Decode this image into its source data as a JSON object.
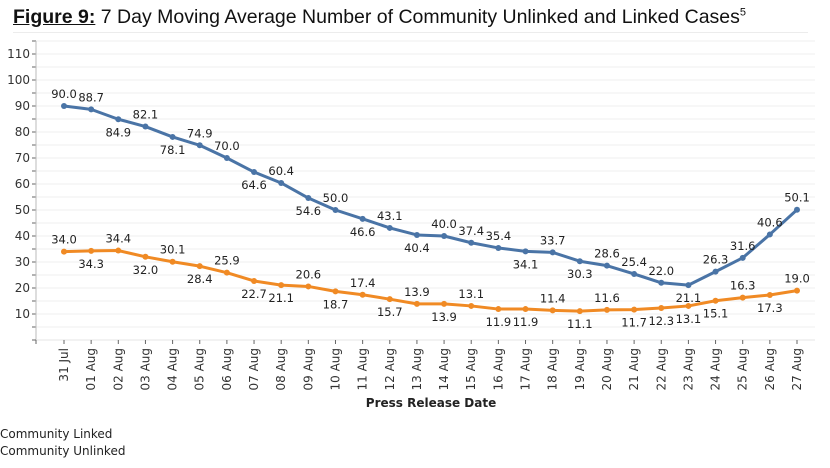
{
  "title": {
    "figure_label": "Figure 9:",
    "text": " 7 Day Moving Average Number of Community Unlinked and Linked Cases",
    "superscript": "5"
  },
  "chart_data": {
    "type": "line",
    "title": "Figure 9: 7 Day Moving Average Number of Community Unlinked and Linked Cases",
    "xlabel": "Press Release Date",
    "ylabel": "",
    "ylim": [
      0,
      115
    ],
    "yticks": [
      10,
      20,
      30,
      40,
      50,
      60,
      70,
      80,
      90,
      100,
      110
    ],
    "grid": true,
    "legend_position": "bottom-left",
    "categories": [
      "31 Jul",
      "01 Aug",
      "02 Aug",
      "03 Aug",
      "04 Aug",
      "05 Aug",
      "06 Aug",
      "07 Aug",
      "08 Aug",
      "09 Aug",
      "10 Aug",
      "11 Aug",
      "12 Aug",
      "13 Aug",
      "14 Aug",
      "15 Aug",
      "16 Aug",
      "17 Aug",
      "18 Aug",
      "19 Aug",
      "20 Aug",
      "21 Aug",
      "22 Aug",
      "23 Aug",
      "24 Aug",
      "25 Aug",
      "26 Aug",
      "27 Aug"
    ],
    "series": [
      {
        "name": "Community Unlinked",
        "color": "#4a74a6",
        "values": [
          90.0,
          88.7,
          84.9,
          82.1,
          78.1,
          74.9,
          70.0,
          64.6,
          60.4,
          54.6,
          50.0,
          46.6,
          43.1,
          40.4,
          40.0,
          37.4,
          35.4,
          34.1,
          33.7,
          30.3,
          28.6,
          25.4,
          22.0,
          21.1,
          26.3,
          31.6,
          40.6,
          50.1
        ],
        "label_positions": [
          "above",
          "above",
          "below",
          "above",
          "below",
          "above",
          "above",
          "below",
          "above",
          "below",
          "above",
          "below",
          "above",
          "below",
          "above",
          "above",
          "above",
          "below",
          "above",
          "below",
          "above",
          "above",
          "above",
          "below",
          "above",
          "above",
          "above",
          "above"
        ]
      },
      {
        "name": "Community Linked",
        "color": "#f08a24",
        "values": [
          34.0,
          34.3,
          34.4,
          32.0,
          30.1,
          28.4,
          25.9,
          22.7,
          21.1,
          20.6,
          18.7,
          17.4,
          15.7,
          13.9,
          13.9,
          13.1,
          11.9,
          11.9,
          11.4,
          11.1,
          11.6,
          11.7,
          12.3,
          13.1,
          15.1,
          16.3,
          17.3,
          19.0
        ],
        "label_positions": [
          "above",
          "below",
          "above",
          "below",
          "above",
          "below",
          "above",
          "below",
          "below",
          "above",
          "below",
          "above",
          "below",
          "above",
          "below",
          "above",
          "below",
          "below",
          "above",
          "below",
          "above",
          "below",
          "below",
          "below",
          "below",
          "above",
          "below",
          "above"
        ]
      }
    ]
  },
  "legend": {
    "items": [
      "Community Linked",
      "Community Unlinked"
    ]
  }
}
